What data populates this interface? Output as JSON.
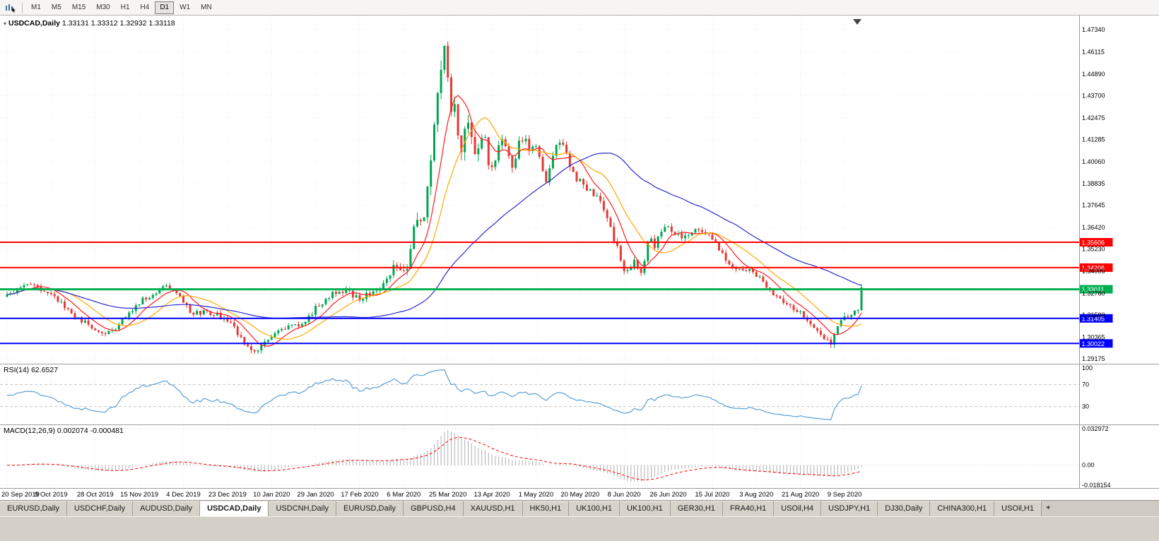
{
  "toolbar": {
    "timeframes": [
      "M1",
      "M5",
      "M15",
      "M30",
      "H1",
      "H4",
      "D1",
      "W1",
      "MN"
    ],
    "active_timeframe": "D1"
  },
  "chart": {
    "title_symbol": "USDCAD,Daily",
    "title_ohlc": "1.33131 1.33312 1.32932 1.33118",
    "rsi_label": "RSI(14) 62.6527",
    "macd_label": "MACD(12,26,9) 0.002074 -0.000481"
  },
  "chart_data": {
    "type": "candlestick",
    "symbol": "USDCAD",
    "timeframe": "Daily",
    "current_bar": {
      "open": 1.33131,
      "high": 1.33312,
      "low": 1.32932,
      "close": 1.33118
    },
    "up_color": "#00a651",
    "down_color": "#e53935",
    "y_ticks": [
      "1.47340",
      "1.46115",
      "1.44890",
      "1.43700",
      "1.42475",
      "1.41285",
      "1.40060",
      "1.38835",
      "1.37645",
      "1.36420",
      "1.35230",
      "1.34005",
      "1.32780",
      "1.31590",
      "1.30365",
      "1.29175"
    ],
    "x_labels": [
      "20 Sep 2019",
      "9 Oct 2019",
      "28 Oct 2019",
      "15 Nov 2019",
      "4 Dec 2019",
      "23 Dec 2019",
      "10 Jan 2020",
      "29 Jan 2020",
      "17 Feb 2020",
      "6 Mar 2020",
      "25 Mar 2020",
      "13 Apr 2020",
      "1 May 2020",
      "20 May 2020",
      "8 Jun 2020",
      "26 Jun 2020",
      "15 Jul 2020",
      "3 Aug 2020",
      "21 Aug 2020",
      "9 Sep 2020"
    ],
    "candles_per_label": 13,
    "num_candles": 253,
    "close_keypoints": [
      [
        0,
        1.3268
      ],
      [
        3,
        1.3295
      ],
      [
        6,
        1.3322
      ],
      [
        10,
        1.33
      ],
      [
        13,
        1.3282
      ],
      [
        16,
        1.3228
      ],
      [
        19,
        1.3168
      ],
      [
        22,
        1.3128
      ],
      [
        26,
        1.3075
      ],
      [
        29,
        1.3048
      ],
      [
        32,
        1.3088
      ],
      [
        35,
        1.3158
      ],
      [
        39,
        1.3228
      ],
      [
        42,
        1.3268
      ],
      [
        46,
        1.3308
      ],
      [
        48,
        1.3318
      ],
      [
        50,
        1.3288
      ],
      [
        52,
        1.3238
      ],
      [
        54,
        1.3168
      ],
      [
        58,
        1.3175
      ],
      [
        62,
        1.316
      ],
      [
        65,
        1.3128
      ],
      [
        67,
        1.3088
      ],
      [
        69,
        1.3028
      ],
      [
        71,
        1.2972
      ],
      [
        73,
        1.2958
      ],
      [
        75,
        1.2992
      ],
      [
        78,
        1.3045
      ],
      [
        81,
        1.3075
      ],
      [
        84,
        1.3098
      ],
      [
        87,
        1.3112
      ],
      [
        89,
        1.3148
      ],
      [
        91,
        1.3198
      ],
      [
        94,
        1.3242
      ],
      [
        97,
        1.3288
      ],
      [
        100,
        1.3298
      ],
      [
        102,
        1.3268
      ],
      [
        104,
        1.3252
      ],
      [
        107,
        1.3278
      ],
      [
        110,
        1.3308
      ],
      [
        112,
        1.3355
      ],
      [
        114,
        1.3418
      ],
      [
        116,
        1.3398
      ],
      [
        118,
        1.3425
      ],
      [
        120,
        1.3658
      ],
      [
        121,
        1.3715
      ],
      [
        122,
        1.3638
      ],
      [
        123,
        1.3735
      ],
      [
        124,
        1.3868
      ],
      [
        125,
        1.4025
      ],
      [
        126,
        1.4215
      ],
      [
        127,
        1.4345
      ],
      [
        128,
        1.4495
      ],
      [
        129,
        1.4635
      ],
      [
        130,
        1.4438
      ],
      [
        131,
        1.4248
      ],
      [
        132,
        1.4325
      ],
      [
        133,
        1.4178
      ],
      [
        134,
        1.4078
      ],
      [
        135,
        1.4148
      ],
      [
        136,
        1.4215
      ],
      [
        137,
        1.4128
      ],
      [
        138,
        1.4058
      ],
      [
        139,
        1.4098
      ],
      [
        140,
        1.4168
      ],
      [
        141,
        1.4118
      ],
      [
        142,
        1.4018
      ],
      [
        143,
        1.3958
      ],
      [
        144,
        1.4008
      ],
      [
        145,
        1.4078
      ],
      [
        146,
        1.4118
      ],
      [
        147,
        1.4088
      ],
      [
        148,
        1.4028
      ],
      [
        149,
        1.3978
      ],
      [
        150,
        1.4038
      ],
      [
        151,
        1.4098
      ],
      [
        152,
        1.4138
      ],
      [
        153,
        1.4108
      ],
      [
        154,
        1.4058
      ],
      [
        155,
        1.4088
      ],
      [
        156,
        1.4078
      ],
      [
        157,
        1.4018
      ],
      [
        158,
        1.3948
      ],
      [
        159,
        1.3898
      ],
      [
        160,
        1.3958
      ],
      [
        161,
        1.4028
      ],
      [
        162,
        1.4088
      ],
      [
        163,
        1.4128
      ],
      [
        164,
        1.4098
      ],
      [
        165,
        1.4048
      ],
      [
        166,
        1.3988
      ],
      [
        167,
        1.3938
      ],
      [
        169,
        1.3898
      ],
      [
        171,
        1.3858
      ],
      [
        173,
        1.3828
      ],
      [
        175,
        1.3778
      ],
      [
        177,
        1.3688
      ],
      [
        179,
        1.3578
      ],
      [
        181,
        1.3468
      ],
      [
        182,
        1.3418
      ],
      [
        183,
        1.3388
      ],
      [
        184,
        1.3428
      ],
      [
        185,
        1.3478
      ],
      [
        186,
        1.3428
      ],
      [
        187,
        1.3388
      ],
      [
        188,
        1.3468
      ],
      [
        189,
        1.3558
      ],
      [
        190,
        1.3588
      ],
      [
        191,
        1.3548
      ],
      [
        193,
        1.3618
      ],
      [
        195,
        1.3648
      ],
      [
        197,
        1.3618
      ],
      [
        199,
        1.3578
      ],
      [
        201,
        1.3608
      ],
      [
        203,
        1.3638
      ],
      [
        205,
        1.3618
      ],
      [
        207,
        1.3588
      ],
      [
        209,
        1.3548
      ],
      [
        211,
        1.3498
      ],
      [
        213,
        1.3448
      ],
      [
        215,
        1.3398
      ],
      [
        217,
        1.3418
      ],
      [
        219,
        1.3408
      ],
      [
        221,
        1.3378
      ],
      [
        223,
        1.3338
      ],
      [
        225,
        1.3298
      ],
      [
        227,
        1.3258
      ],
      [
        229,
        1.3228
      ],
      [
        231,
        1.3198
      ],
      [
        233,
        1.3188
      ],
      [
        235,
        1.3158
      ],
      [
        237,
        1.3118
      ],
      [
        239,
        1.3078
      ],
      [
        241,
        1.3038
      ],
      [
        243,
        1.2996
      ],
      [
        244,
        1.3038
      ],
      [
        245,
        1.3088
      ],
      [
        246,
        1.3128
      ],
      [
        247,
        1.3148
      ],
      [
        248,
        1.3162
      ],
      [
        249,
        1.3152
      ],
      [
        250,
        1.3168
      ],
      [
        251,
        1.3188
      ],
      [
        252,
        1.3312
      ]
    ],
    "volatility_keypoints": [
      [
        0,
        1
      ],
      [
        108,
        1
      ],
      [
        114,
        1.5
      ],
      [
        118,
        2.2
      ],
      [
        124,
        3.0
      ],
      [
        130,
        3.2
      ],
      [
        136,
        2.6
      ],
      [
        144,
        2.0
      ],
      [
        152,
        1.7
      ],
      [
        162,
        1.5
      ],
      [
        172,
        1.3
      ],
      [
        180,
        1.5
      ],
      [
        186,
        1.3
      ],
      [
        200,
        1.1
      ],
      [
        214,
        1.0
      ],
      [
        240,
        1.0
      ],
      [
        246,
        1.2
      ],
      [
        252,
        1.2
      ]
    ],
    "moving_averages": [
      {
        "period": 8,
        "color": "#ff1a1a"
      },
      {
        "period": 16,
        "color": "#ffa800"
      },
      {
        "period": 55,
        "color": "#2a2ad0"
      }
    ],
    "hlines": [
      {
        "price": 1.35606,
        "label": "1.35606",
        "color": "#ff0000",
        "width": 2
      },
      {
        "price": 1.34206,
        "label": "1.34206",
        "color": "#ff0000",
        "width": 2
      },
      {
        "price": 1.33011,
        "label": "1.33011",
        "color": "#00b050",
        "width": 3
      },
      {
        "price": 1.31405,
        "label": "1.31405",
        "color": "#0000ff",
        "width": 2
      },
      {
        "price": 1.30022,
        "label": "1.30022",
        "color": "#0000ff",
        "width": 2
      }
    ],
    "rsi": {
      "period": 14,
      "current": "62.6527",
      "levels": [
        100,
        70,
        30
      ],
      "color": "#5a9fd6"
    },
    "macd": {
      "fast": 12,
      "slow": 26,
      "signal": 9,
      "current_text": "0.002074 -0.000481",
      "scale_labels": [
        "0.032972",
        "0.00",
        "-0.018154"
      ],
      "scale_max": 0.032972,
      "scale_min": -0.018154,
      "hist_color": "#b0b0b0",
      "signal_color": "#ff0000"
    }
  },
  "tabs": {
    "items": [
      "EURUSD,Daily",
      "USDCHF,Daily",
      "AUDUSD,Daily",
      "USDCAD,Daily",
      "USDCNH,Daily",
      "EURUSD,Daily",
      "GBPUSD,H4",
      "XAUUSD,H1",
      "HK50,H1",
      "UK100,H1",
      "UK100,H1",
      "GER30,H1",
      "FRA40,H1",
      "USOil,H4",
      "USDJPY,H1",
      "DJ30,Daily",
      "CHINA300,H1",
      "USOil,H1"
    ],
    "active_index": 3,
    "scroll_left_glyph": "◂"
  }
}
